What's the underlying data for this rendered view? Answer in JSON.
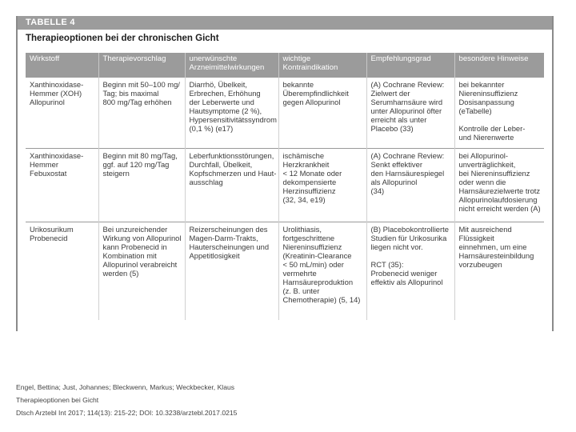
{
  "table": {
    "label": "TABELLE 4",
    "title": "Therapieoptionen bei der chronischen Gicht",
    "headers": [
      [
        "Wirkstoff"
      ],
      [
        "Therapievorschlag"
      ],
      [
        "unerwünschte",
        "Arzneimittelwirkungen"
      ],
      [
        "wichtige",
        "Kontraindikation"
      ],
      [
        "Empfehlungsgrad"
      ],
      [
        "besondere Hinweise"
      ]
    ],
    "rows": [
      [
        [
          "Xanthinoxidase-",
          "Hemmer (XOH)",
          "Allopurinol"
        ],
        [
          "Beginn mit 50–100 mg/",
          "Tag; bis maximal",
          "800 mg/Tag erhöhen"
        ],
        [
          "Diarrhö, Übelkeit,",
          "Erbrechen, Erhöhung",
          "der Leberwerte und",
          "Hautsymptome (2 %),",
          "Hypersensitivitätssyndrom",
          "(0,1 %) (e17)"
        ],
        [
          "bekannte",
          "Überempfindlichkeit",
          "gegen Allopurinol"
        ],
        [
          "(A) Cochrane Review:",
          "Zielwert der",
          "Serumharnsäure wird",
          "unter Allopurinol öfter",
          "erreicht als unter",
          "Placebo (33)"
        ],
        [
          "bei bekannter",
          "Niereninsuffizienz",
          "Dosisanpassung",
          "(eTabelle)",
          "",
          "Kontrolle der Leber-",
          "und Nierenwerte"
        ]
      ],
      [
        [
          "Xanthinoxidase-",
          "Hemmer",
          "Febuxostat"
        ],
        [
          "Beginn mit 80 mg/Tag,",
          "ggf. auf 120 mg/Tag",
          "steigern"
        ],
        [
          "Leberfunktionsstörungen,",
          "Durchfall, Übelkeit,",
          "Kopfschmerzen und Haut-",
          "ausschlag"
        ],
        [
          "ischämische",
          "Herzkrankheit",
          "< 12 Monate oder",
          "dekompensierte",
          "Herzinsuffizienz",
          "(32, 34, e19)"
        ],
        [
          "(A) Cochrane Review:",
          "Senkt effektiver",
          "den Harnsäurespiegel",
          "als Allopurinol",
          "(34)"
        ],
        [
          "bei Allopurinol-",
          "unverträglichkeit,",
          "bei Niereninsuffizienz",
          "oder wenn die",
          "Harnsäurezielwerte trotz",
          "Allopurinolaufdosierung",
          "nicht erreicht werden (A)"
        ]
      ],
      [
        [
          "Urikosurikum",
          "Probenecid"
        ],
        [
          "Bei unzureichender",
          "Wirkung von Allopurinol",
          "kann Probenecid in",
          "Kombination mit",
          "Allopurinol verabreicht",
          "werden (5)"
        ],
        [
          "Reizerscheinungen des",
          "Magen-Darm-Trakts,",
          "Hauterscheinungen und",
          "Appetitlosigkeit"
        ],
        [
          "Urolithiasis,",
          "fortgeschrittene",
          "Niereninsuffizienz",
          "(Kreatinin-Clearance",
          "< 50 mL/min) oder",
          "vermehrte",
          "Harnsäureproduktion",
          "(z. B. unter",
          "Chemotherapie) (5, 14)"
        ],
        [
          "(B) Placebokontrollierte",
          "Studien für Urikosurika",
          "liegen nicht vor.",
          "",
          "RCT (35):",
          "Probenecid weniger",
          "effektiv als Allopurinol"
        ],
        [
          "Mit ausreichend",
          "Flüssigkeit",
          "einnehmen, um eine",
          "Harnsäuresteinbildung",
          "vorzubeugen"
        ]
      ]
    ]
  },
  "citation": {
    "authors": "Engel, Bettina; Just, Johannes; Bleckwenn, Markus; Weckbecker, Klaus",
    "title": "Therapieoptionen bei Gicht",
    "reference": "Dtsch Arztebl Int 2017; 114(13): 215-22; DOI: 10.3238/arztebl.2017.0215"
  }
}
